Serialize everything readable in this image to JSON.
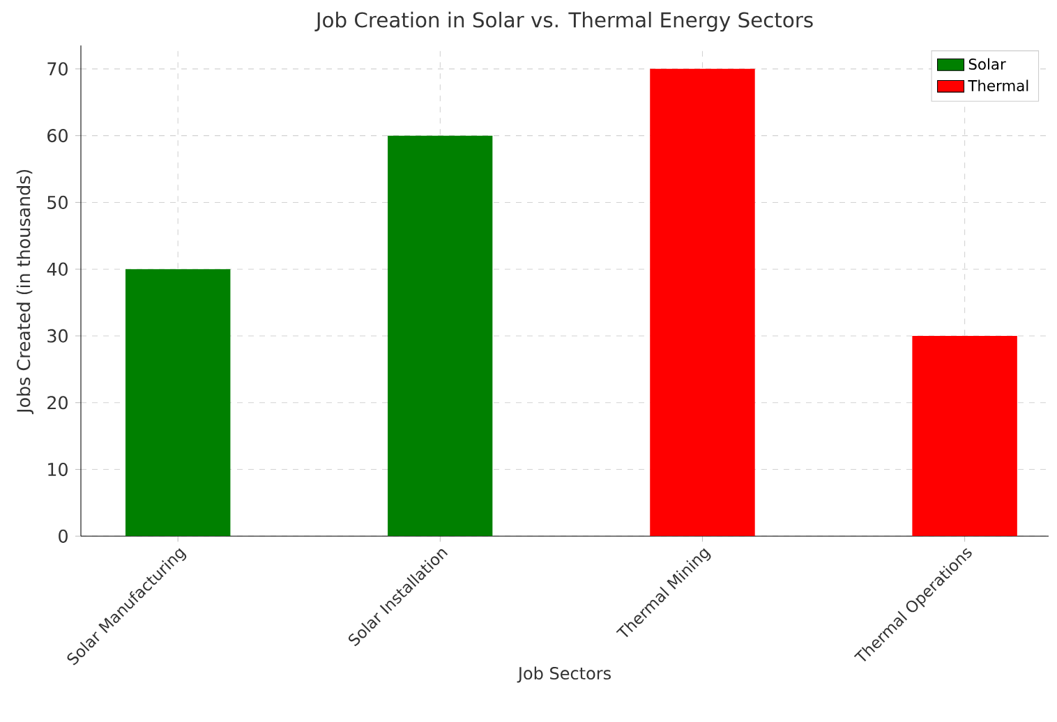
{
  "chart_data": {
    "type": "bar",
    "title": "Job Creation in Solar vs. Thermal Energy Sectors",
    "xlabel": "Job Sectors",
    "ylabel": "Jobs Created (in thousands)",
    "categories": [
      "Solar Manufacturing",
      "Solar Installation",
      "Thermal Mining",
      "Thermal Operations"
    ],
    "series": [
      {
        "name": "Solar",
        "color": "#008000",
        "values": [
          40,
          60,
          null,
          null
        ]
      },
      {
        "name": "Thermal",
        "color": "#ff0000",
        "values": [
          null,
          null,
          70,
          30
        ]
      }
    ],
    "ylim": [
      0,
      73.5
    ],
    "yticks": [
      0,
      10,
      20,
      30,
      40,
      50,
      60,
      70
    ],
    "grid": true,
    "legend": "top right"
  }
}
